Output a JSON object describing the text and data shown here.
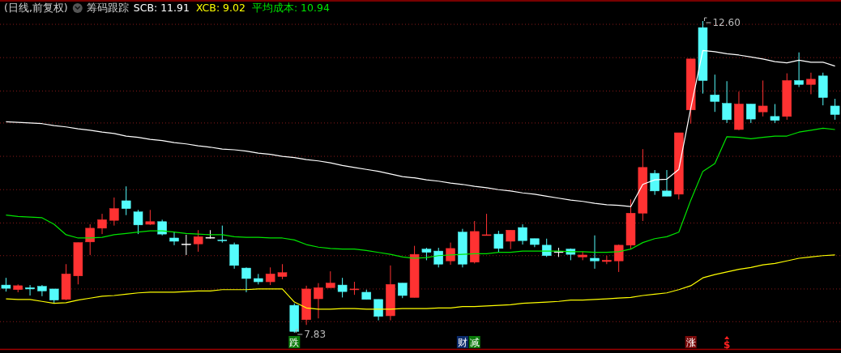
{
  "chart_data": {
    "type": "candlestick",
    "title": "筹码跟踪",
    "subtitle": "(日线,前复权)",
    "categories": [
      null,
      null,
      null,
      null,
      null,
      null,
      null,
      null,
      null,
      null,
      null,
      null,
      null,
      null,
      null,
      null,
      null,
      null,
      null,
      null,
      null,
      null,
      null,
      null,
      null,
      null,
      null,
      null,
      null,
      null,
      null,
      null,
      null,
      null,
      null,
      null,
      null,
      null,
      null,
      null,
      null,
      null,
      null,
      null,
      null,
      null,
      null,
      null,
      null,
      null,
      null,
      null,
      null,
      null,
      null,
      null,
      null,
      null,
      null,
      null,
      null,
      null,
      null,
      null,
      null,
      null,
      null,
      null,
      null,
      null
    ],
    "ohlc": [
      [
        8.56,
        8.67,
        8.46,
        8.51
      ],
      [
        8.49,
        8.57,
        8.45,
        8.55
      ],
      [
        8.52,
        8.56,
        8.4,
        8.5
      ],
      [
        8.54,
        8.56,
        8.39,
        8.47
      ],
      [
        8.5,
        8.5,
        8.28,
        8.33
      ],
      [
        8.34,
        8.88,
        8.33,
        8.73
      ],
      [
        8.7,
        9.21,
        8.57,
        9.21
      ],
      [
        9.22,
        9.49,
        9.02,
        9.43
      ],
      [
        9.43,
        9.65,
        9.34,
        9.56
      ],
      [
        9.55,
        9.9,
        9.47,
        9.73
      ],
      [
        9.85,
        10.07,
        9.63,
        9.73
      ],
      [
        9.68,
        9.71,
        9.34,
        9.48
      ],
      [
        9.49,
        9.71,
        9.48,
        9.53
      ],
      [
        9.53,
        9.56,
        9.32,
        9.34
      ],
      [
        9.28,
        9.37,
        9.17,
        9.23
      ],
      [
        9.19,
        9.33,
        9.02,
        9.19
      ],
      [
        9.19,
        9.4,
        9.07,
        9.3
      ],
      [
        9.29,
        9.4,
        9.27,
        9.29
      ],
      [
        9.25,
        9.47,
        9.21,
        9.24
      ],
      [
        9.18,
        9.21,
        8.81,
        8.86
      ],
      [
        8.82,
        8.83,
        8.45,
        8.66
      ],
      [
        8.66,
        8.73,
        8.57,
        8.61
      ],
      [
        8.61,
        8.83,
        8.56,
        8.73
      ],
      [
        8.69,
        8.88,
        8.65,
        8.75
      ],
      [
        8.25,
        8.28,
        7.83,
        7.85
      ],
      [
        8.03,
        8.55,
        7.95,
        8.5
      ],
      [
        8.35,
        8.59,
        8.05,
        8.52
      ],
      [
        8.52,
        8.77,
        8.52,
        8.59
      ],
      [
        8.56,
        8.67,
        8.37,
        8.46
      ],
      [
        8.49,
        8.61,
        8.41,
        8.5
      ],
      [
        8.45,
        8.49,
        8.34,
        8.34
      ],
      [
        8.34,
        8.34,
        8.02,
        8.08
      ],
      [
        8.09,
        8.86,
        8.02,
        8.57
      ],
      [
        8.59,
        8.59,
        8.36,
        8.4
      ],
      [
        8.37,
        9.16,
        8.37,
        9.03
      ],
      [
        9.11,
        9.13,
        8.94,
        9.06
      ],
      [
        9.08,
        9.13,
        8.83,
        8.88
      ],
      [
        8.93,
        9.21,
        8.87,
        9.12
      ],
      [
        9.37,
        9.42,
        8.83,
        8.88
      ],
      [
        8.91,
        9.54,
        8.89,
        9.38
      ],
      [
        9.32,
        9.65,
        9.32,
        9.33
      ],
      [
        9.34,
        9.39,
        9.06,
        9.12
      ],
      [
        9.23,
        9.4,
        9.11,
        9.4
      ],
      [
        9.44,
        9.49,
        9.18,
        9.24
      ],
      [
        9.27,
        9.27,
        9.14,
        9.18
      ],
      [
        9.17,
        9.27,
        8.99,
        9.01
      ],
      [
        9.07,
        9.13,
        8.99,
        9.07
      ],
      [
        9.11,
        9.12,
        8.94,
        9.03
      ],
      [
        8.99,
        9.07,
        8.94,
        9.02
      ],
      [
        8.97,
        9.32,
        8.81,
        8.93
      ],
      [
        8.92,
        9.01,
        8.88,
        8.94
      ],
      [
        8.93,
        9.18,
        8.76,
        9.17
      ],
      [
        9.17,
        9.87,
        9.12,
        9.66
      ],
      [
        9.66,
        10.64,
        9.54,
        10.36
      ],
      [
        10.27,
        10.32,
        9.94,
        10.0
      ],
      [
        10.0,
        10.32,
        9.92,
        9.92
      ],
      [
        9.95,
        10.89,
        9.87,
        10.89
      ],
      [
        11.24,
        12.02,
        11.03,
        12.02
      ],
      [
        12.5,
        12.6,
        11.49,
        11.69
      ],
      [
        11.47,
        11.78,
        11.21,
        11.37
      ],
      [
        11.34,
        11.68,
        11.04,
        11.09
      ],
      [
        10.94,
        11.52,
        10.93,
        11.33
      ],
      [
        11.33,
        11.33,
        11.04,
        11.1
      ],
      [
        11.21,
        11.69,
        11.14,
        11.3
      ],
      [
        11.14,
        11.33,
        11.04,
        11.08
      ],
      [
        11.14,
        11.8,
        11.09,
        11.69
      ],
      [
        11.69,
        12.12,
        11.59,
        11.63
      ],
      [
        11.63,
        11.81,
        11.48,
        11.71
      ],
      [
        11.76,
        11.81,
        11.31,
        11.43
      ],
      [
        11.3,
        11.41,
        11.09,
        11.17
      ]
    ],
    "colors": [
      "#54fcfc",
      "#ff3232",
      "#54fcfc",
      "#54fcfc",
      "#54fcfc",
      "#ff3232",
      "#ff3232",
      "#ff3232",
      "#ff3232",
      "#ff3232",
      "#54fcfc",
      "#54fcfc",
      "#ff3232",
      "#54fcfc",
      "#54fcfc",
      "#ffffff",
      "#ff3232",
      "#ffffff",
      "#54fcfc",
      "#54fcfc",
      "#54fcfc",
      "#54fcfc",
      "#ff3232",
      "#ff3232",
      "#54fcfc",
      "#ff3232",
      "#ff3232",
      "#ff3232",
      "#54fcfc",
      "#ff3232",
      "#54fcfc",
      "#54fcfc",
      "#ff3232",
      "#54fcfc",
      "#ff3232",
      "#54fcfc",
      "#54fcfc",
      "#ff3232",
      "#54fcfc",
      "#ff3232",
      "#ff3232",
      "#54fcfc",
      "#ff3232",
      "#54fcfc",
      "#54fcfc",
      "#54fcfc",
      "#ffffff",
      "#54fcfc",
      "#ff3232",
      "#54fcfc",
      "#ff3232",
      "#ff3232",
      "#ff3232",
      "#ff3232",
      "#54fcfc",
      "#54fcfc",
      "#ff3232",
      "#ff3232",
      "#54fcfc",
      "#54fcfc",
      "#54fcfc",
      "#ff3232",
      "#54fcfc",
      "#ff3232",
      "#54fcfc",
      "#ff3232",
      "#54fcfc",
      "#ff3232",
      "#54fcfc",
      "#54fcfc"
    ],
    "series": [
      {
        "type": "line",
        "name": "SCB: 11.91",
        "color": "#ffffff",
        "values": [
          11.06,
          11.05,
          11.04,
          11.03,
          11.0,
          10.98,
          10.95,
          10.93,
          10.9,
          10.88,
          10.84,
          10.82,
          10.79,
          10.77,
          10.74,
          10.72,
          10.69,
          10.67,
          10.64,
          10.63,
          10.61,
          10.58,
          10.56,
          10.53,
          10.51,
          10.48,
          10.46,
          10.43,
          10.39,
          10.36,
          10.33,
          10.3,
          10.26,
          10.22,
          10.2,
          10.17,
          10.15,
          10.12,
          10.1,
          10.07,
          10.05,
          10.02,
          10.0,
          9.97,
          9.95,
          9.92,
          9.89,
          9.86,
          9.84,
          9.81,
          9.79,
          9.78,
          9.76,
          10.1,
          10.17,
          10.18,
          10.33,
          11.27,
          12.15,
          12.13,
          12.1,
          12.08,
          12.05,
          12.02,
          11.98,
          11.96,
          12.0,
          11.97,
          11.97,
          11.91
        ]
      },
      {
        "type": "line",
        "name": "XCB: 9.02",
        "color": "#ffff00",
        "values": [
          8.35,
          8.34,
          8.34,
          8.31,
          8.28,
          8.29,
          8.33,
          8.36,
          8.39,
          8.4,
          8.42,
          8.44,
          8.45,
          8.45,
          8.45,
          8.46,
          8.47,
          8.47,
          8.49,
          8.49,
          8.49,
          8.5,
          8.5,
          8.5,
          8.3,
          8.21,
          8.19,
          8.19,
          8.2,
          8.2,
          8.19,
          8.19,
          8.19,
          8.2,
          8.2,
          8.2,
          8.21,
          8.21,
          8.23,
          8.23,
          8.24,
          8.25,
          8.26,
          8.28,
          8.29,
          8.3,
          8.31,
          8.33,
          8.33,
          8.34,
          8.35,
          8.36,
          8.37,
          8.4,
          8.42,
          8.44,
          8.49,
          8.55,
          8.67,
          8.72,
          8.76,
          8.8,
          8.83,
          8.87,
          8.89,
          8.93,
          8.97,
          8.99,
          9.01,
          9.02
        ]
      },
      {
        "type": "line",
        "name": "平均成本: 10.94",
        "color": "#00e600",
        "values": [
          9.63,
          9.61,
          9.6,
          9.59,
          9.49,
          9.33,
          9.28,
          9.28,
          9.29,
          9.33,
          9.35,
          9.37,
          9.39,
          9.39,
          9.37,
          9.35,
          9.34,
          9.33,
          9.33,
          9.3,
          9.29,
          9.29,
          9.28,
          9.28,
          9.25,
          9.18,
          9.14,
          9.12,
          9.11,
          9.11,
          9.09,
          9.06,
          9.03,
          8.99,
          8.97,
          8.98,
          9.01,
          9.02,
          9.03,
          9.04,
          9.04,
          9.06,
          9.06,
          9.08,
          9.08,
          9.08,
          9.08,
          9.07,
          9.07,
          9.06,
          9.06,
          9.07,
          9.11,
          9.21,
          9.27,
          9.3,
          9.37,
          9.86,
          10.3,
          10.42,
          10.83,
          10.82,
          10.8,
          10.82,
          10.84,
          10.84,
          10.9,
          10.93,
          10.96,
          10.94
        ]
      }
    ],
    "yticks": [
      {
        "value": 8.0,
        "label": null
      },
      {
        "value": 8.5,
        "label": null
      },
      {
        "value": 9.01,
        "label": null
      },
      {
        "value": 9.51,
        "label": null
      },
      {
        "value": 10.02,
        "label": null
      },
      {
        "value": 10.53,
        "label": null
      },
      {
        "value": 11.04,
        "label": null
      },
      {
        "value": 11.53,
        "label": null
      },
      {
        "value": 12.04,
        "label": null
      },
      {
        "value": 12.55,
        "label": null
      }
    ],
    "grid": "y",
    "legend": "top left",
    "annotations": [
      "12.60",
      "7.83",
      "跌",
      "财",
      "减",
      "涨",
      "$"
    ]
  }
}
